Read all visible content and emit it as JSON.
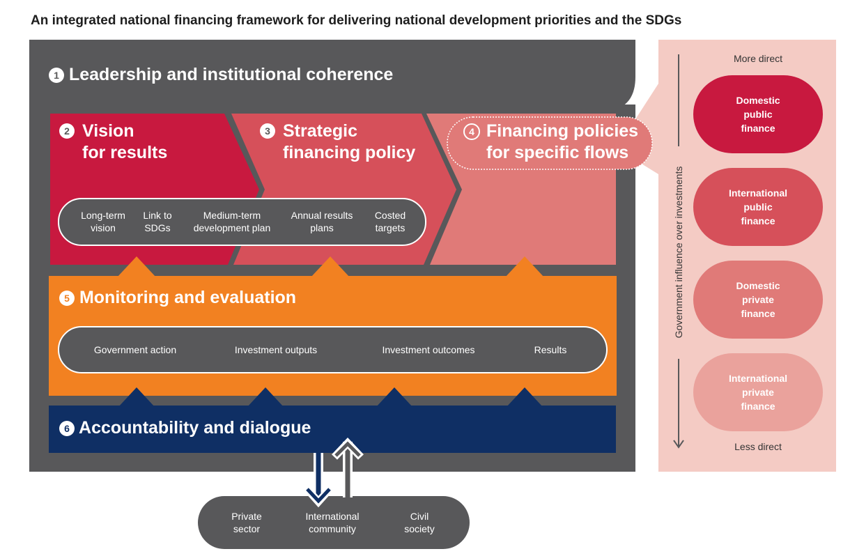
{
  "title": "An integrated national financing framework for delivering national development priorities and the SDGs",
  "leadership": {
    "number": "1",
    "label": "Leadership and institutional coherence"
  },
  "vision": {
    "number": "2",
    "line1": "Vision",
    "line2": "for results"
  },
  "strategic": {
    "number": "3",
    "line1": "Strategic",
    "line2": "financing policy"
  },
  "financing": {
    "number": "4",
    "line1": "Financing policies",
    "line2": "for specific flows"
  },
  "plan_items": [
    {
      "line1": "Long-term",
      "line2": "vision"
    },
    {
      "line1": "Link to",
      "line2": "SDGs"
    },
    {
      "line1": "Medium-term",
      "line2": "development plan"
    },
    {
      "line1": "Annual results",
      "line2": "plans"
    },
    {
      "line1": "Costed",
      "line2": "targets"
    }
  ],
  "monitoring": {
    "number": "5",
    "label": "Monitoring and evaluation"
  },
  "me_items": [
    "Government action",
    "Investment outputs",
    "Investment outcomes",
    "Results"
  ],
  "accountability": {
    "number": "6",
    "label": "Accountability and dialogue"
  },
  "stakeholders": [
    {
      "line1": "Private",
      "line2": "sector"
    },
    {
      "line1": "International",
      "line2": "community"
    },
    {
      "line1": "Civil",
      "line2": "society"
    }
  ],
  "side": {
    "top": "More direct",
    "bottom": "Less direct",
    "axis": "Government influence over investments",
    "flows": [
      {
        "line1": "Domestic",
        "line2": "public",
        "line3": "finance",
        "color": "#c8193f"
      },
      {
        "line1": "International",
        "line2": "public",
        "line3": "finance",
        "color": "#d6505a"
      },
      {
        "line1": "Domestic",
        "line2": "private",
        "line3": "finance",
        "color": "#e07a78"
      },
      {
        "line1": "International",
        "line2": "private",
        "line3": "finance",
        "color": "#eaa29c"
      }
    ]
  },
  "colors": {
    "dark": "#58585a",
    "crimson": "#c8193f",
    "red": "#d6505a",
    "salmon": "#e07a78",
    "orange": "#f28121",
    "navy": "#0f2f64",
    "panel": "#f4cbc4"
  }
}
